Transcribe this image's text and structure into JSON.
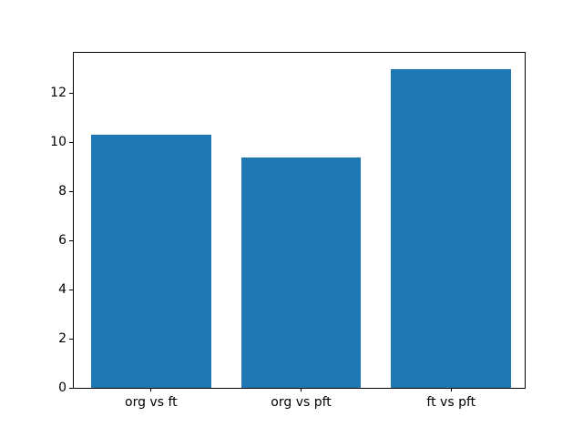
{
  "figure": {
    "background": "#ffffff"
  },
  "chart_data": {
    "type": "bar",
    "title": "",
    "xlabel": "",
    "ylabel": "",
    "categories": [
      "org vs ft",
      "org vs pft",
      "ft vs pft"
    ],
    "values": [
      10.3,
      9.4,
      13.0
    ],
    "yticks": [
      0,
      2,
      4,
      6,
      8,
      10,
      12
    ],
    "ylim": [
      0,
      13.65
    ],
    "xlim": [
      -0.515,
      2.49
    ],
    "bar_width": 0.8,
    "bar_color": "#1f77b4",
    "axis_color": "#000000",
    "text_color": "#000000",
    "grid": false,
    "legend": null
  }
}
